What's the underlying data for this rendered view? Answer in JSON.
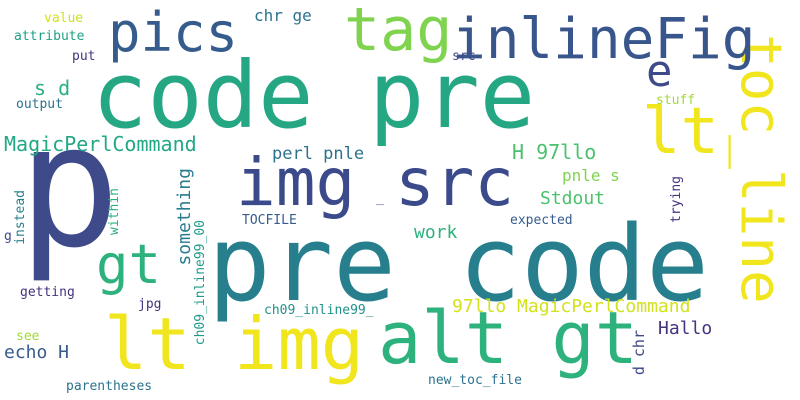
{
  "words": {
    "code_pre": "code pre",
    "pre_code": "pre code",
    "p": "p",
    "img_src": "img src",
    "lt_img": "lt img",
    "alt_gt": "alt gt",
    "toc_line": "toc_line",
    "inlineFig": "inlineFig",
    "tag": "tag",
    "pics": "pics",
    "lt": "lt",
    "gt": "gt",
    "e": "e",
    "magic_perl_command": "MagicPerlCommand",
    "h_97llo": "H 97llo",
    "perl_pnle": "perl pnle",
    "s_d": "s d",
    "chr_ge": "chr ge",
    "value": "value",
    "attribute": "attribute",
    "put": "put",
    "src": "src",
    "output": "output",
    "stuff": "stuff",
    "pnle_s": "pnle s",
    "stdout": "Stdout",
    "work": "work",
    "something": "something",
    "instead": "instead",
    "within": "within",
    "ch09_inline99_00": "ch09_inline99_00",
    "tocfile": "TOCFILE",
    "expected": "expected",
    "trying": "trying",
    "dash": "_",
    "g": "g",
    "getting": "getting",
    "jpg": "jpg",
    "ch09_inline99_": "ch09_inline99_",
    "97llo_magic": "97llo MagicPerlCommand",
    "hallo": "Hallo",
    "echo_h": "echo H",
    "see": "see",
    "parentheses": "parentheses",
    "new_toc_file": "new_toc_file",
    "d_chr": "d chr"
  },
  "colors": {
    "indigo": "#3b4a8a",
    "navy": "#46327e",
    "slate": "#365c8d",
    "teal": "#277f8e",
    "sea": "#1fa187",
    "green": "#4ac16d",
    "lime": "#a0da39",
    "yellow": "#f1e51d"
  }
}
